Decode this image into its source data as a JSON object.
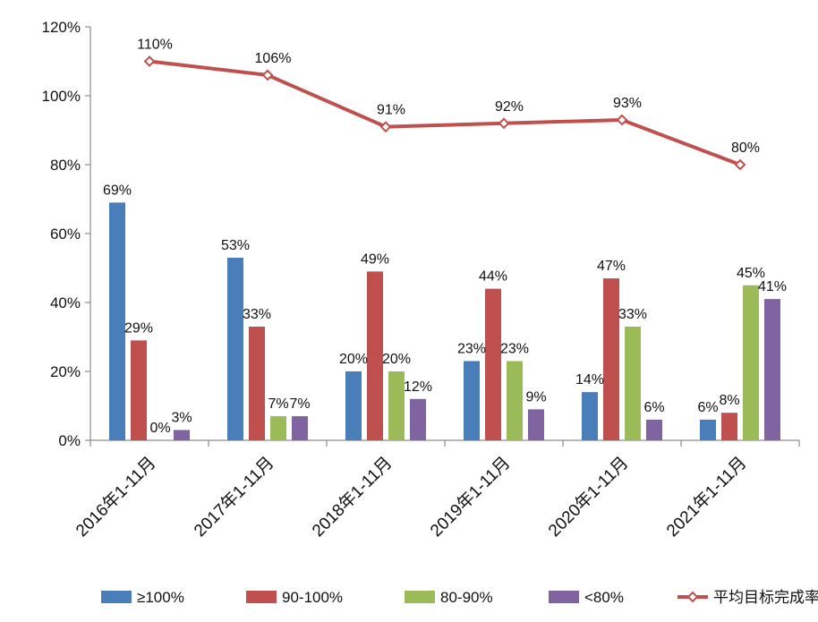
{
  "chart_data": {
    "type": "bar",
    "title": "",
    "xlabel": "",
    "ylabel": "",
    "ylim": [
      0,
      120
    ],
    "y_ticks": [
      {
        "value": 0,
        "label": "0%"
      },
      {
        "value": 20,
        "label": "20%"
      },
      {
        "value": 40,
        "label": "40%"
      },
      {
        "value": 60,
        "label": "60%"
      },
      {
        "value": 80,
        "label": "80%"
      },
      {
        "value": 100,
        "label": "100%"
      },
      {
        "value": 120,
        "label": "120%"
      }
    ],
    "grid": false,
    "legend_position": "bottom",
    "categories": [
      "2016年1-11月",
      "2017年1-11月",
      "2018年1-11月",
      "2019年1-11月",
      "2020年1-11月",
      "2021年1-11月"
    ],
    "series": [
      {
        "name": "≥100%",
        "kind": "bar",
        "color": "#4a7ebb",
        "values": [
          69,
          53,
          20,
          23,
          14,
          6
        ],
        "labels": [
          "69%",
          "53%",
          "20%",
          "23%",
          "14%",
          "6%"
        ]
      },
      {
        "name": "90-100%",
        "kind": "bar",
        "color": "#c0504d",
        "values": [
          29,
          33,
          49,
          44,
          47,
          8
        ],
        "labels": [
          "29%",
          "33%",
          "49%",
          "44%",
          "47%",
          "8%"
        ]
      },
      {
        "name": "80-90%",
        "kind": "bar",
        "color": "#9bbb59",
        "values": [
          0,
          7,
          20,
          23,
          33,
          45
        ],
        "labels": [
          "0%",
          "7%",
          "20%",
          "23%",
          "33%",
          "45%"
        ]
      },
      {
        "name": "<80%",
        "kind": "bar",
        "color": "#8064a2",
        "values": [
          3,
          7,
          12,
          9,
          6,
          41
        ],
        "labels": [
          "3%",
          "7%",
          "12%",
          "9%",
          "6%",
          "41%"
        ]
      },
      {
        "name": "平均目标完成率",
        "kind": "line",
        "color": "#c0504d",
        "values": [
          110,
          106,
          91,
          92,
          93,
          80
        ],
        "labels": [
          "110%",
          "106%",
          "91%",
          "92%",
          "93%",
          "80%"
        ]
      }
    ]
  }
}
